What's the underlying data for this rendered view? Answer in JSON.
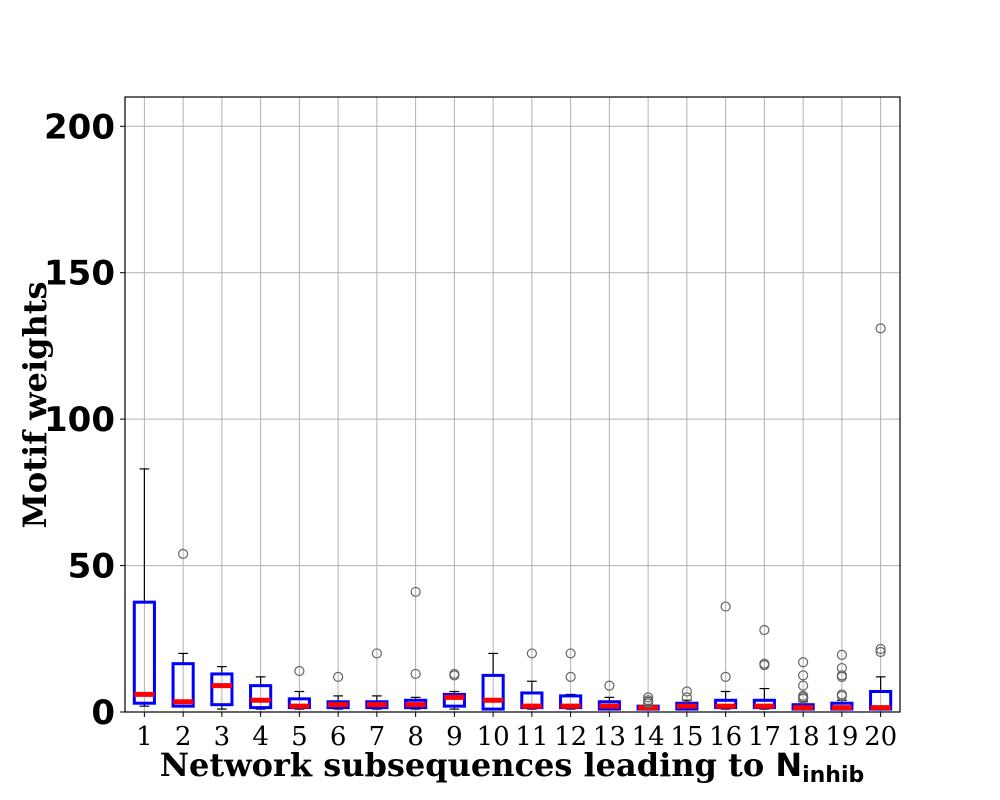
{
  "chart_data": {
    "type": "box",
    "title": "",
    "xlabel": "Network subsequences leading to ",
    "xlabel_symbol": "N",
    "xlabel_subscript": "inhib",
    "ylabel": "Motif weights",
    "ylim": [
      0,
      210
    ],
    "yticks": [
      0,
      50,
      100,
      150,
      200
    ],
    "grid": true,
    "categories": [
      "1",
      "2",
      "3",
      "4",
      "5",
      "6",
      "7",
      "8",
      "9",
      "10",
      "11",
      "12",
      "13",
      "14",
      "15",
      "16",
      "17",
      "18",
      "19",
      "20"
    ],
    "boxes": [
      {
        "q1": 3,
        "median": 6,
        "q3": 37.5,
        "whisker_low": 2,
        "whisker_high": 83,
        "outliers": []
      },
      {
        "q1": 2,
        "median": 3.5,
        "q3": 16.5,
        "whisker_low": 2,
        "whisker_high": 20,
        "outliers": [
          54
        ]
      },
      {
        "q1": 2.5,
        "median": 9,
        "q3": 13,
        "whisker_low": 1,
        "whisker_high": 15.5,
        "outliers": []
      },
      {
        "q1": 1.5,
        "median": 4,
        "q3": 9,
        "whisker_low": 1,
        "whisker_high": 12,
        "outliers": []
      },
      {
        "q1": 1.5,
        "median": 2,
        "q3": 4.5,
        "whisker_low": 1,
        "whisker_high": 7,
        "outliers": [
          14
        ]
      },
      {
        "q1": 1.5,
        "median": 2.5,
        "q3": 3.5,
        "whisker_low": 1,
        "whisker_high": 5.5,
        "outliers": [
          12
        ]
      },
      {
        "q1": 1.5,
        "median": 2.5,
        "q3": 3.5,
        "whisker_low": 1,
        "whisker_high": 5.5,
        "outliers": [
          20
        ]
      },
      {
        "q1": 1.5,
        "median": 2.5,
        "q3": 4,
        "whisker_low": 1,
        "whisker_high": 5,
        "outliers": [
          13,
          41
        ]
      },
      {
        "q1": 2,
        "median": 5,
        "q3": 6,
        "whisker_low": 1,
        "whisker_high": 7,
        "outliers": [
          12.5,
          13
        ]
      },
      {
        "q1": 1,
        "median": 4,
        "q3": 12.5,
        "whisker_low": 1,
        "whisker_high": 20,
        "outliers": []
      },
      {
        "q1": 1.5,
        "median": 2,
        "q3": 6.5,
        "whisker_low": 1,
        "whisker_high": 10.5,
        "outliers": [
          20
        ]
      },
      {
        "q1": 1.5,
        "median": 2,
        "q3": 5.5,
        "whisker_low": 1,
        "whisker_high": 6,
        "outliers": [
          12,
          20
        ]
      },
      {
        "q1": 1,
        "median": 2,
        "q3": 3.5,
        "whisker_low": 1,
        "whisker_high": 5,
        "outliers": [
          9
        ]
      },
      {
        "q1": 1,
        "median": 1.5,
        "q3": 2,
        "whisker_low": 1,
        "whisker_high": 2.5,
        "outliers": [
          3,
          3.5,
          4,
          5
        ]
      },
      {
        "q1": 1,
        "median": 2,
        "q3": 3,
        "whisker_low": 1,
        "whisker_high": 4,
        "outliers": [
          5,
          7
        ]
      },
      {
        "q1": 1.5,
        "median": 2,
        "q3": 4,
        "whisker_low": 1,
        "whisker_high": 7,
        "outliers": [
          12,
          36
        ]
      },
      {
        "q1": 1.5,
        "median": 2,
        "q3": 4,
        "whisker_low": 1,
        "whisker_high": 8,
        "outliers": [
          16,
          16.5,
          28
        ]
      },
      {
        "q1": 1,
        "median": 1.5,
        "q3": 2.5,
        "whisker_low": 1,
        "whisker_high": 3.5,
        "outliers": [
          4.5,
          5,
          5.5,
          9,
          12.5,
          17
        ]
      },
      {
        "q1": 1,
        "median": 1.5,
        "q3": 3,
        "whisker_low": 1,
        "whisker_high": 4,
        "outliers": [
          5.5,
          6,
          12,
          12.5,
          15,
          19.5
        ]
      },
      {
        "q1": 1,
        "median": 1.5,
        "q3": 7,
        "whisker_low": 1,
        "whisker_high": 12,
        "outliers": [
          20.5,
          21.5,
          131
        ]
      }
    ],
    "colors": {
      "box": "#0000ff",
      "median": "#ff0000",
      "whisker": "#000000",
      "outlier": "#666666",
      "grid": "#b0b0b0"
    }
  }
}
